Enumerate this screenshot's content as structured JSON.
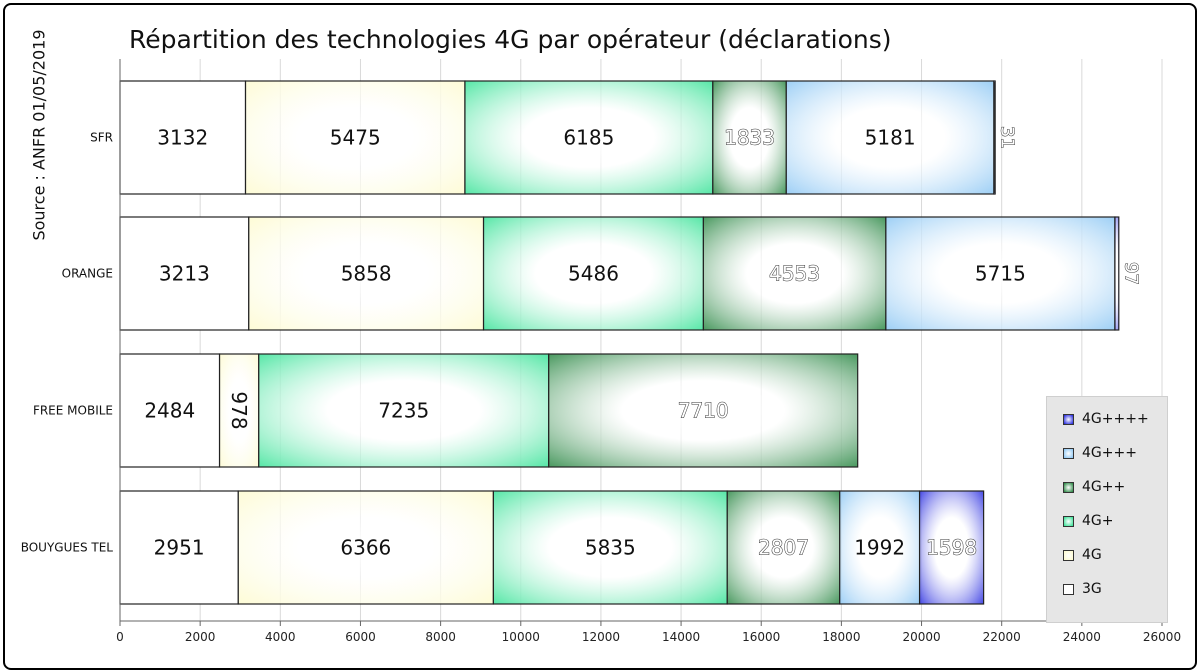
{
  "title": "Répartition des technologies 4G par opérateur (déclarations)",
  "source": "Source : ANFR 01/05/2019",
  "colors": {
    "3G": "#ffffff",
    "4G": "#fdfbd0",
    "4G+": "#3ee39a",
    "4G++": "#2f8a48",
    "4G+++": "#8fc8f4",
    "4G++++": "#2b2fe0"
  },
  "chart_data": {
    "type": "bar",
    "orientation": "horizontal",
    "stacked": true,
    "categories": [
      "SFR",
      "ORANGE",
      "FREE MOBILE",
      "BOUYGUES TEL"
    ],
    "series": [
      {
        "name": "3G",
        "values": [
          3132,
          3213,
          2484,
          2951
        ]
      },
      {
        "name": "4G",
        "values": [
          5475,
          5858,
          978,
          6366
        ]
      },
      {
        "name": "4G+",
        "values": [
          6185,
          5486,
          7235,
          5835
        ]
      },
      {
        "name": "4G++",
        "values": [
          1833,
          4553,
          7710,
          2807
        ]
      },
      {
        "name": "4G+++",
        "values": [
          5181,
          5715,
          0,
          1992
        ]
      },
      {
        "name": "4G++++",
        "values": [
          31,
          97,
          0,
          1598
        ]
      }
    ],
    "value_labels": [
      [
        "3132",
        "5475",
        "6185",
        "1833",
        "5181",
        "31"
      ],
      [
        "3213",
        "5858",
        "5486",
        "4553",
        "5715",
        "97"
      ],
      [
        "2484",
        "978",
        "7235",
        "7710",
        "",
        ""
      ],
      [
        "2951",
        "6366",
        "5835",
        "2807",
        "1992",
        "1598"
      ]
    ],
    "xlim": [
      0,
      26000
    ],
    "xticks": [
      "0",
      "2000",
      "4000",
      "6000",
      "8000",
      "10000",
      "12000",
      "14000",
      "16000",
      "18000",
      "20000",
      "22000",
      "24000",
      "26000"
    ],
    "grid": true,
    "legend": {
      "placement": "bottom-right",
      "entries": [
        "4G++++",
        "4G+++",
        "4G++",
        "4G+",
        "4G",
        "3G"
      ]
    }
  }
}
